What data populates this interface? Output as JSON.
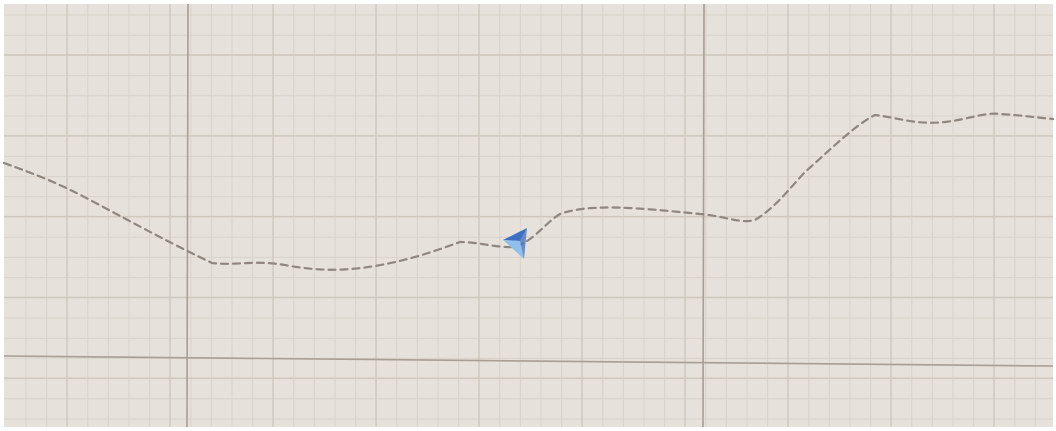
{
  "graph_paper": {
    "paper_color": "#e6e1da",
    "fine_grid_color": "#d8d2ca",
    "coarse_grid_color": "#cfc8bf",
    "major_grid_color": "#a79e95",
    "border_color": "#ffffff"
  },
  "trace": {
    "color": "#8f877f",
    "style": "dashed"
  },
  "marker": {
    "icon": "blue-arrowhead-icon",
    "color_dark": "#3d6fc2",
    "color_light": "#8fc0ec"
  }
}
